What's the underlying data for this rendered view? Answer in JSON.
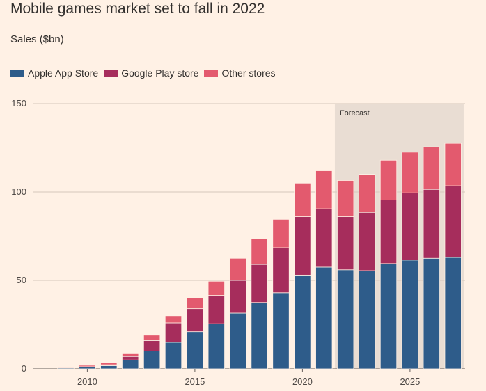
{
  "chart_data": {
    "type": "bar",
    "stacked": true,
    "title": "Mobile games market set to fall in 2022",
    "ylabel": "Sales ($bn)",
    "xlabel": "",
    "ylim": [
      0,
      150
    ],
    "yticks": [
      0,
      50,
      100,
      150
    ],
    "xticks": [
      2010,
      2015,
      2020,
      2025
    ],
    "grid": true,
    "legend_position": "top-left",
    "annotation": {
      "text": "Forecast",
      "from_year": 2022,
      "to_year": 2027
    },
    "categories": [
      2009,
      2010,
      2011,
      2012,
      2013,
      2014,
      2015,
      2016,
      2017,
      2018,
      2019,
      2020,
      2021,
      2022,
      2023,
      2024,
      2025,
      2026,
      2027
    ],
    "series": [
      {
        "name": "Apple App Store",
        "color": "#2E5C8A",
        "values": [
          0.5,
          1.0,
          1.8,
          5.0,
          10.0,
          15.0,
          21.0,
          25.5,
          31.5,
          37.5,
          43.0,
          53.0,
          57.5,
          56.0,
          55.5,
          59.5,
          61.5,
          62.5,
          63.0
        ]
      },
      {
        "name": "Google Play store",
        "color": "#A62D5C",
        "values": [
          0.1,
          0.2,
          0.5,
          2.0,
          6.0,
          11.0,
          13.0,
          16.0,
          18.5,
          21.5,
          25.5,
          33.0,
          33.0,
          30.0,
          33.0,
          36.0,
          38.0,
          39.0,
          40.5
        ]
      },
      {
        "name": "Other stores",
        "color": "#E35A6E",
        "values": [
          0.7,
          0.8,
          1.0,
          1.5,
          3.0,
          4.0,
          6.0,
          8.0,
          12.5,
          14.5,
          16.0,
          19.0,
          21.5,
          20.5,
          21.5,
          22.5,
          23.0,
          24.0,
          24.0
        ]
      }
    ]
  }
}
